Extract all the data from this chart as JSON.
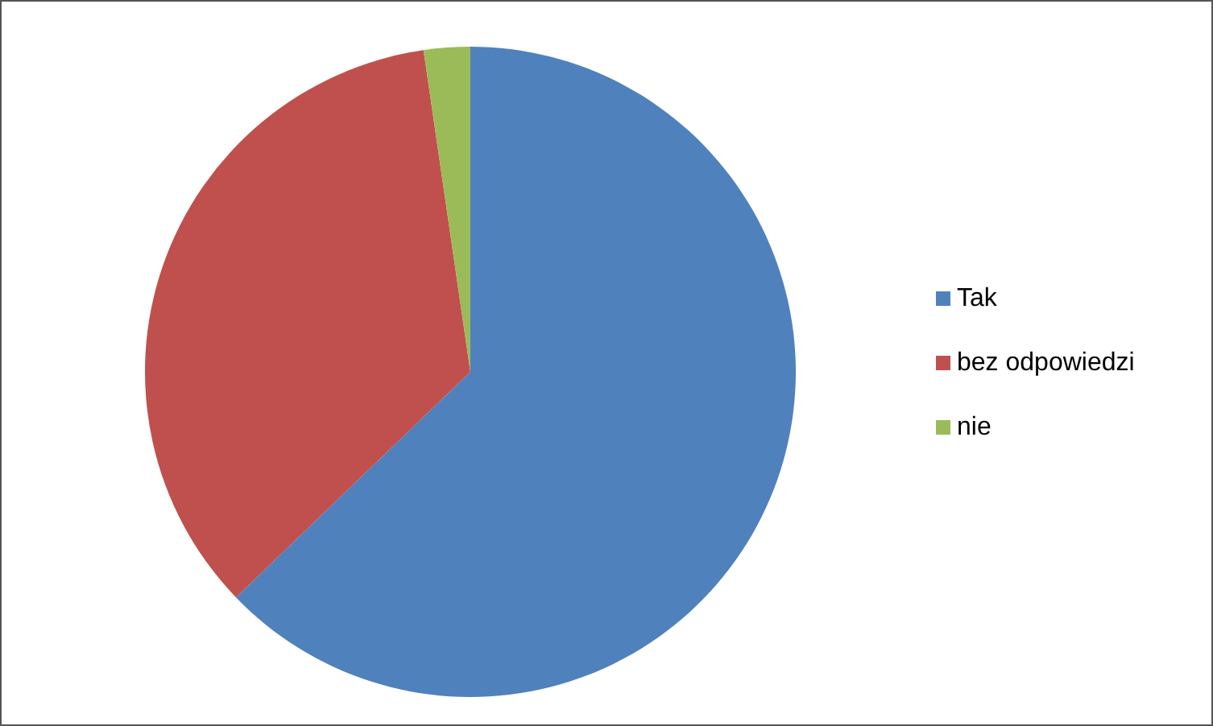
{
  "chart_data": {
    "type": "pie",
    "categories": [
      "Tak",
      "bez odpowiedzi",
      "nie"
    ],
    "values": [
      62.8,
      34.9,
      2.3
    ],
    "colors": [
      "#4f81bd",
      "#c0504d",
      "#9bbb59"
    ],
    "legend": "right"
  }
}
